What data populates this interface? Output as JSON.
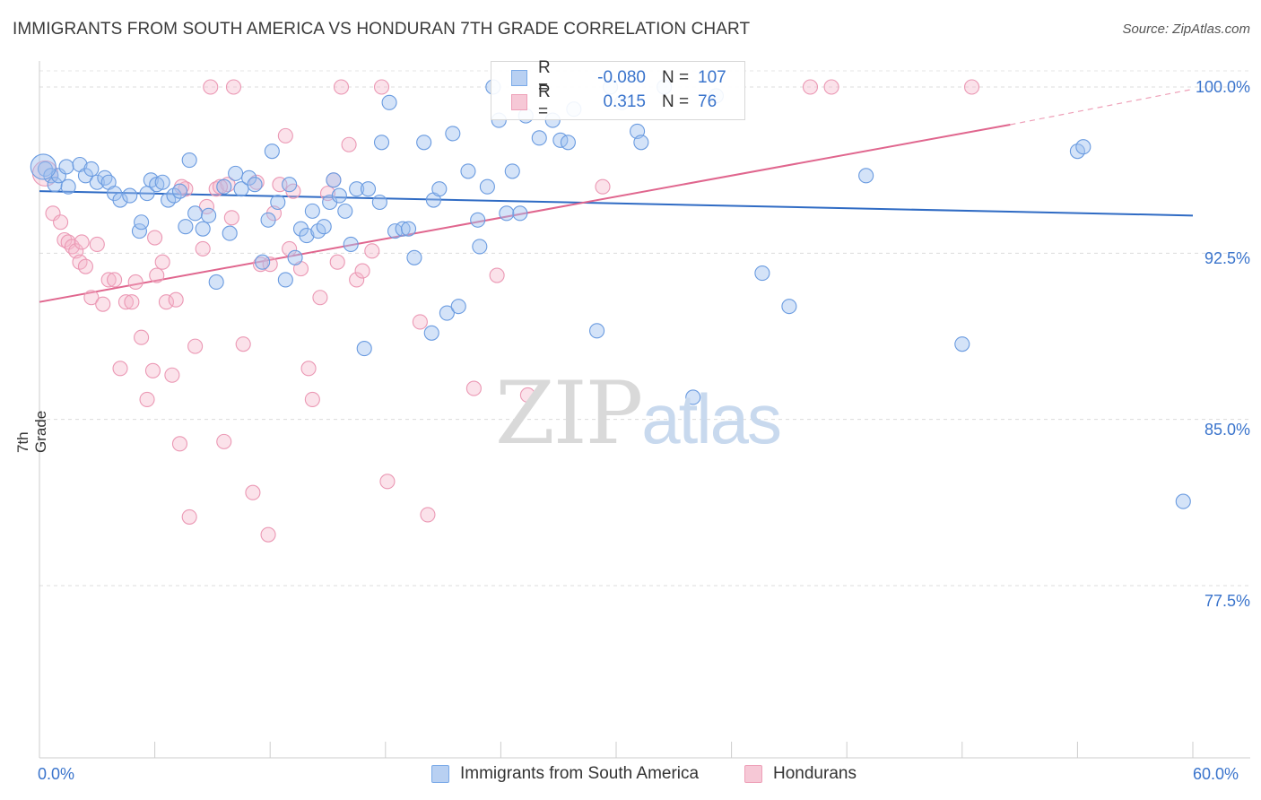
{
  "title": "IMMIGRANTS FROM SOUTH AMERICA VS HONDURAN 7TH GRADE CORRELATION CHART",
  "source": "Source: ZipAtlas.com",
  "watermark": {
    "zip": "ZIP",
    "atlas": "atlas"
  },
  "legend": {
    "r_label": "R =",
    "n_label": "N =",
    "series": [
      {
        "name": "Immigrants from South America",
        "r": "-0.080",
        "n": "107",
        "color": "#7aaae8",
        "fill": "#b8d0f2"
      },
      {
        "name": "Hondurans",
        "r": "0.315",
        "n": "76",
        "color": "#eea0b8",
        "fill": "#f6c8d6"
      }
    ]
  },
  "chart_data": {
    "type": "scatter",
    "title": "IMMIGRANTS FROM SOUTH AMERICA VS HONDURAN 7TH GRADE CORRELATION CHART",
    "xlabel": "",
    "ylabel": "7th Grade",
    "x_tick_labels": [
      "0.0%",
      "60.0%"
    ],
    "y_tick_labels": [
      "100.0%",
      "92.5%",
      "85.0%",
      "77.5%"
    ],
    "y_ticks": [
      100.0,
      92.5,
      85.0,
      77.5
    ],
    "xlim": [
      0,
      60
    ],
    "ylim": [
      70.3,
      100.6
    ],
    "series": [
      {
        "name": "Immigrants from South America",
        "color": "#4a7fd0",
        "trend": {
          "x0": 0.0,
          "y0": 95.3,
          "x1": 60.0,
          "y1": 94.2
        },
        "points": [
          [
            0.3,
            96.3
          ],
          [
            0.6,
            96.0
          ],
          [
            0.8,
            95.6
          ],
          [
            1.0,
            96.0
          ],
          [
            1.4,
            96.4
          ],
          [
            1.5,
            95.5
          ],
          [
            2.1,
            96.5
          ],
          [
            2.4,
            96.0
          ],
          [
            2.7,
            96.3
          ],
          [
            3.0,
            95.7
          ],
          [
            3.4,
            95.9
          ],
          [
            3.6,
            95.7
          ],
          [
            3.9,
            95.2
          ],
          [
            4.2,
            94.9
          ],
          [
            4.7,
            95.1
          ],
          [
            5.2,
            93.5
          ],
          [
            5.3,
            93.9
          ],
          [
            5.6,
            95.2
          ],
          [
            5.8,
            95.8
          ],
          [
            6.1,
            95.6
          ],
          [
            6.4,
            95.7
          ],
          [
            6.7,
            94.9
          ],
          [
            7.0,
            95.1
          ],
          [
            7.3,
            95.3
          ],
          [
            7.6,
            93.7
          ],
          [
            7.8,
            96.7
          ],
          [
            8.1,
            94.3
          ],
          [
            8.5,
            93.6
          ],
          [
            8.8,
            94.2
          ],
          [
            9.2,
            91.2
          ],
          [
            9.6,
            95.5
          ],
          [
            9.9,
            93.4
          ],
          [
            10.2,
            96.1
          ],
          [
            10.5,
            95.4
          ],
          [
            10.9,
            95.9
          ],
          [
            11.2,
            95.6
          ],
          [
            11.6,
            92.1
          ],
          [
            11.9,
            94.0
          ],
          [
            12.1,
            97.1
          ],
          [
            12.4,
            94.8
          ],
          [
            12.8,
            91.3
          ],
          [
            13.0,
            95.6
          ],
          [
            13.3,
            92.3
          ],
          [
            13.6,
            93.6
          ],
          [
            13.9,
            93.3
          ],
          [
            14.2,
            94.4
          ],
          [
            14.5,
            93.5
          ],
          [
            14.8,
            93.7
          ],
          [
            15.1,
            94.8
          ],
          [
            15.3,
            95.8
          ],
          [
            15.6,
            95.1
          ],
          [
            15.9,
            94.4
          ],
          [
            16.2,
            92.9
          ],
          [
            16.5,
            95.4
          ],
          [
            16.9,
            88.2
          ],
          [
            17.1,
            95.4
          ],
          [
            17.7,
            94.8
          ],
          [
            17.8,
            97.5
          ],
          [
            18.2,
            99.3
          ],
          [
            18.5,
            93.5
          ],
          [
            18.9,
            93.6
          ],
          [
            19.2,
            93.6
          ],
          [
            19.5,
            92.3
          ],
          [
            20.0,
            97.5
          ],
          [
            20.4,
            88.9
          ],
          [
            20.5,
            94.9
          ],
          [
            20.8,
            95.4
          ],
          [
            21.2,
            89.8
          ],
          [
            21.5,
            97.9
          ],
          [
            21.8,
            90.1
          ],
          [
            22.3,
            96.2
          ],
          [
            22.8,
            94.0
          ],
          [
            22.9,
            92.8
          ],
          [
            23.3,
            95.5
          ],
          [
            23.6,
            100.0
          ],
          [
            23.9,
            98.5
          ],
          [
            24.3,
            94.3
          ],
          [
            24.6,
            96.2
          ],
          [
            25.0,
            94.3
          ],
          [
            25.3,
            98.7
          ],
          [
            26.0,
            97.7
          ],
          [
            26.7,
            98.5
          ],
          [
            27.1,
            97.6
          ],
          [
            27.5,
            97.5
          ],
          [
            27.8,
            99.0
          ],
          [
            29.0,
            89.0
          ],
          [
            29.7,
            100.0
          ],
          [
            30.3,
            99.3
          ],
          [
            31.1,
            98.0
          ],
          [
            31.3,
            97.5
          ],
          [
            32.5,
            100.0
          ],
          [
            34.0,
            86.0
          ],
          [
            35.2,
            99.6
          ],
          [
            37.6,
            91.6
          ],
          [
            39.0,
            90.1
          ],
          [
            43.0,
            96.0
          ],
          [
            48.0,
            88.4
          ],
          [
            54.0,
            97.1
          ],
          [
            54.3,
            97.3
          ],
          [
            59.5,
            81.3
          ],
          [
            0.2,
            96.4
          ]
        ]
      },
      {
        "name": "Hondurans",
        "color": "#e0668e",
        "trend": {
          "x0": 0.0,
          "y0": 90.3,
          "x1": 50.5,
          "y1": 98.3
        },
        "trend_ext": {
          "x0": 50.5,
          "y0": 98.3,
          "x1": 60.0,
          "y1": 99.9
        },
        "points": [
          [
            0.3,
            96.1
          ],
          [
            0.7,
            94.3
          ],
          [
            1.1,
            93.9
          ],
          [
            1.3,
            93.1
          ],
          [
            1.5,
            93.0
          ],
          [
            1.7,
            92.8
          ],
          [
            1.9,
            92.6
          ],
          [
            2.1,
            92.1
          ],
          [
            2.4,
            91.9
          ],
          [
            2.7,
            90.5
          ],
          [
            3.0,
            92.9
          ],
          [
            3.3,
            90.2
          ],
          [
            3.6,
            91.3
          ],
          [
            3.9,
            91.3
          ],
          [
            4.2,
            87.3
          ],
          [
            4.5,
            90.3
          ],
          [
            4.8,
            90.3
          ],
          [
            5.0,
            91.2
          ],
          [
            5.3,
            88.7
          ],
          [
            5.6,
            85.9
          ],
          [
            5.9,
            87.2
          ],
          [
            6.1,
            91.5
          ],
          [
            6.4,
            92.1
          ],
          [
            6.6,
            90.3
          ],
          [
            6.9,
            87.0
          ],
          [
            7.1,
            90.4
          ],
          [
            7.3,
            83.9
          ],
          [
            7.6,
            95.4
          ],
          [
            7.8,
            80.6
          ],
          [
            8.1,
            88.3
          ],
          [
            8.5,
            92.7
          ],
          [
            8.7,
            94.6
          ],
          [
            8.9,
            100.0
          ],
          [
            9.2,
            95.4
          ],
          [
            9.6,
            84.0
          ],
          [
            9.8,
            95.6
          ],
          [
            10.0,
            94.1
          ],
          [
            10.1,
            100.0
          ],
          [
            10.6,
            88.4
          ],
          [
            11.1,
            81.7
          ],
          [
            11.5,
            92.0
          ],
          [
            11.9,
            79.8
          ],
          [
            12.2,
            94.3
          ],
          [
            12.5,
            95.6
          ],
          [
            12.8,
            97.8
          ],
          [
            13.2,
            95.3
          ],
          [
            13.6,
            91.8
          ],
          [
            14.0,
            87.3
          ],
          [
            14.2,
            85.9
          ],
          [
            14.6,
            90.5
          ],
          [
            15.0,
            95.2
          ],
          [
            15.5,
            92.1
          ],
          [
            15.7,
            100.0
          ],
          [
            16.1,
            97.4
          ],
          [
            16.5,
            91.3
          ],
          [
            16.8,
            91.7
          ],
          [
            17.3,
            92.6
          ],
          [
            17.8,
            100.0
          ],
          [
            18.1,
            82.2
          ],
          [
            19.8,
            89.4
          ],
          [
            20.2,
            80.7
          ],
          [
            22.6,
            86.4
          ],
          [
            23.8,
            91.5
          ],
          [
            25.4,
            86.1
          ],
          [
            29.3,
            95.5
          ],
          [
            40.1,
            100.0
          ],
          [
            41.2,
            100.0
          ],
          [
            48.5,
            100.0
          ],
          [
            7.4,
            95.5
          ],
          [
            12.0,
            92.0
          ],
          [
            9.4,
            95.5
          ],
          [
            2.2,
            93.0
          ],
          [
            15.3,
            95.8
          ],
          [
            11.3,
            95.7
          ],
          [
            6.0,
            93.2
          ],
          [
            13.0,
            92.7
          ]
        ]
      }
    ]
  }
}
